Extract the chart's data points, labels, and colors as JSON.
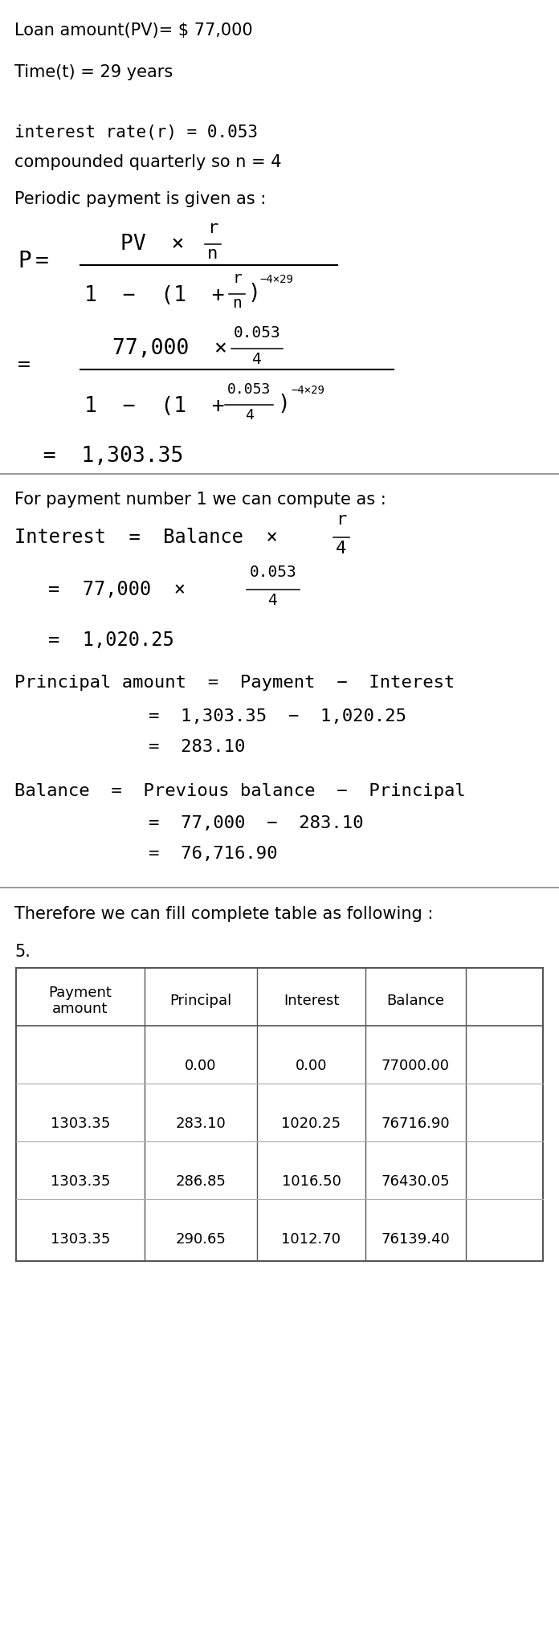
{
  "loan_text": "Loan amount(PV)= $ 77,000",
  "time_text": "Time(t) = 29 years",
  "rate_text": "interest rate(r) = 0.053",
  "compound_text": "compounded quarterly so n = 4",
  "periodic_text": "Periodic payment is given as :",
  "payment_result": "= 1,303.35",
  "for_payment_text": "For payment number 1 we can compute as :",
  "interest_result": "= 1,020.25",
  "principal_line1": "Principal amount = Payment − Interest",
  "principal_line2": "= 1,303.35 − 1,020.25",
  "principal_line3": "= 283.10",
  "balance_line1": "Balance = Previous balance − Principal",
  "balance_line2": "= 77,000 − 283.10",
  "balance_line3": "= 76,716.90",
  "therefore_text": "Therefore we can fill complete table as following :",
  "five_text": "5.",
  "table_headers": [
    "Payment\namount",
    "Principal",
    "Interest",
    "Balance"
  ],
  "table_rows": [
    [
      "",
      "0.00",
      "0.00",
      "77000.00"
    ],
    [
      "1303.35",
      "283.10",
      "1020.25",
      "76716.90"
    ],
    [
      "1303.35",
      "286.85",
      "1016.50",
      "76430.05"
    ],
    [
      "1303.35",
      "290.65",
      "1012.70",
      "76139.40"
    ]
  ],
  "bg_color": "#ffffff",
  "text_color": "#000000",
  "sep_color": "#888888",
  "table_line_color": "#555555"
}
